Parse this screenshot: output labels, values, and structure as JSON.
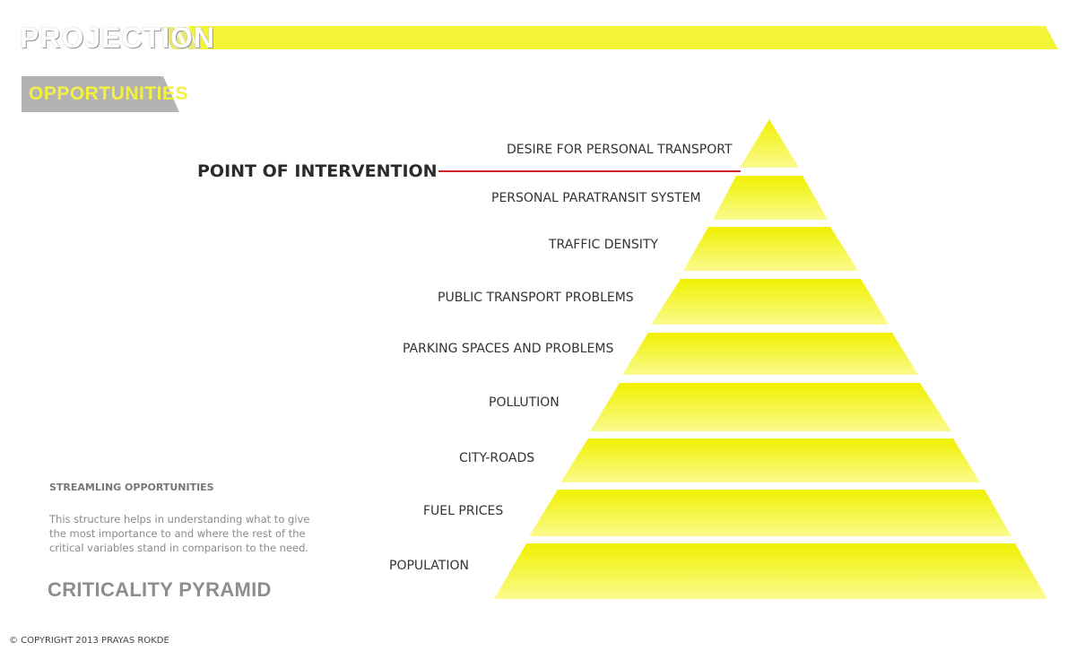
{
  "header": {
    "title": "PROJECTION",
    "accent_color": "#f4f437"
  },
  "section": {
    "label": "OPPORTUNITIES",
    "tab_color": "#b3b3b3",
    "label_color": "#f4f040"
  },
  "pyramid": {
    "tiers": [
      {
        "label": "DESIRE FOR PERSONAL TRANSPORT"
      },
      {
        "label": "PERSONAL PARATRANSIT SYSTEM"
      },
      {
        "label": "TRAFFIC DENSITY"
      },
      {
        "label": "PUBLIC TRANSPORT PROBLEMS"
      },
      {
        "label": "PARKING SPACES AND PROBLEMS"
      },
      {
        "label": "POLLUTION"
      },
      {
        "label": "CITY-ROADS"
      },
      {
        "label": "FUEL PRICES"
      },
      {
        "label": "POPULATION"
      }
    ],
    "top_color": "#f0f000",
    "bottom_color": "#fbfb8e"
  },
  "intervention": {
    "label": "POINT OF INTERVENTION",
    "line_color": "#d0212b"
  },
  "notes": {
    "title": "STREAMLING OPPORTUNITIES",
    "body_lines": [
      "This structure helps in understanding what to give",
      "the most importance to and where the rest of the",
      "critical variables stand in comparison to the need."
    ]
  },
  "diagram_title": "CRITICALITY PYRAMID",
  "footer": {
    "copyright": "© COPYRIGHT 2013 PRAYAS ROKDE"
  }
}
